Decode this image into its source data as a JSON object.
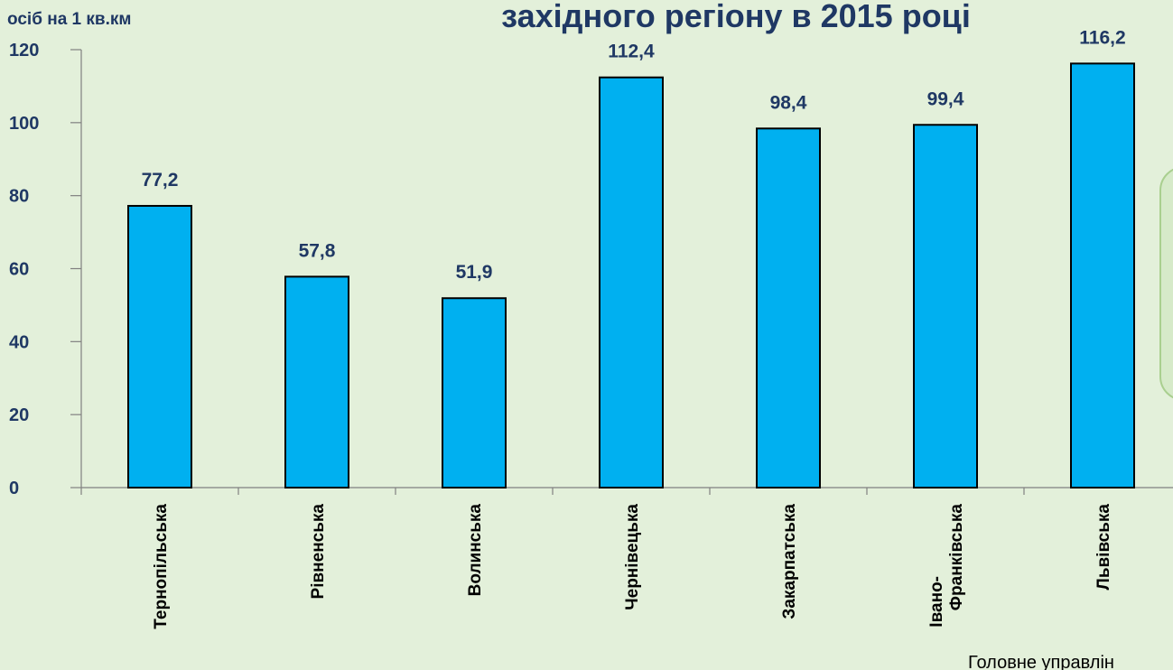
{
  "chart_data": {
    "type": "bar",
    "title": "західного регіону в 2015 році",
    "y_label": "осіб на 1 кв.км",
    "source_note": "Головне управлін",
    "categories": [
      "Тернопільська",
      "Рівненська",
      "Волинська",
      "Чернівецька",
      "Закарпатська",
      "Івано-Франківська",
      "Львівська"
    ],
    "values": [
      77.2,
      57.8,
      51.9,
      112.4,
      98.4,
      99.4,
      116.2
    ],
    "value_labels": [
      "77,2",
      "57,8",
      "51,9",
      "112,4",
      "98,4",
      "99,4",
      "116,2"
    ],
    "color": "#00b0f0",
    "ylim": [
      0,
      120
    ],
    "yticks": [
      0,
      20,
      40,
      60,
      80,
      100,
      120
    ],
    "grid": false
  }
}
